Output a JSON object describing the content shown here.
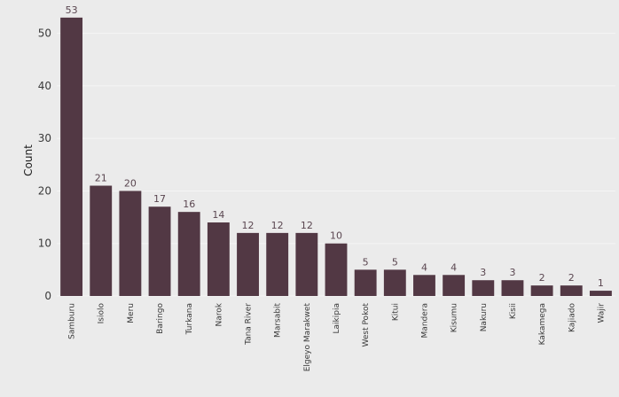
{
  "chart_data": {
    "type": "bar",
    "title": "",
    "xlabel": "",
    "ylabel": "Count",
    "ylim": [
      0,
      55
    ],
    "yticks": [
      0,
      10,
      20,
      30,
      40,
      50
    ],
    "grid": true,
    "categories": [
      "Samburu",
      "Isiolo",
      "Meru",
      "Baringo",
      "Turkana",
      "Narok",
      "Tana River",
      "Marsabit",
      "Elgeyo Marakwet",
      "Laikipia",
      "West Pokot",
      "Kitui",
      "Mandera",
      "Kisumu",
      "Nakuru",
      "Kisii",
      "Kakamega",
      "Kajiado",
      "Wajir"
    ],
    "values": [
      53,
      21,
      20,
      17,
      16,
      14,
      12,
      12,
      12,
      10,
      5,
      5,
      4,
      4,
      3,
      3,
      2,
      2,
      1
    ],
    "value_labels": [
      "53",
      "21",
      "20",
      "17",
      "16",
      "14",
      "12",
      "12",
      "12",
      "10",
      "5",
      "5",
      "4",
      "4",
      "3",
      "3",
      "2",
      "2",
      "1"
    ],
    "colors": {
      "bar": "#523844",
      "background": "#ebebeb",
      "grid": "#f5f5f5"
    }
  }
}
